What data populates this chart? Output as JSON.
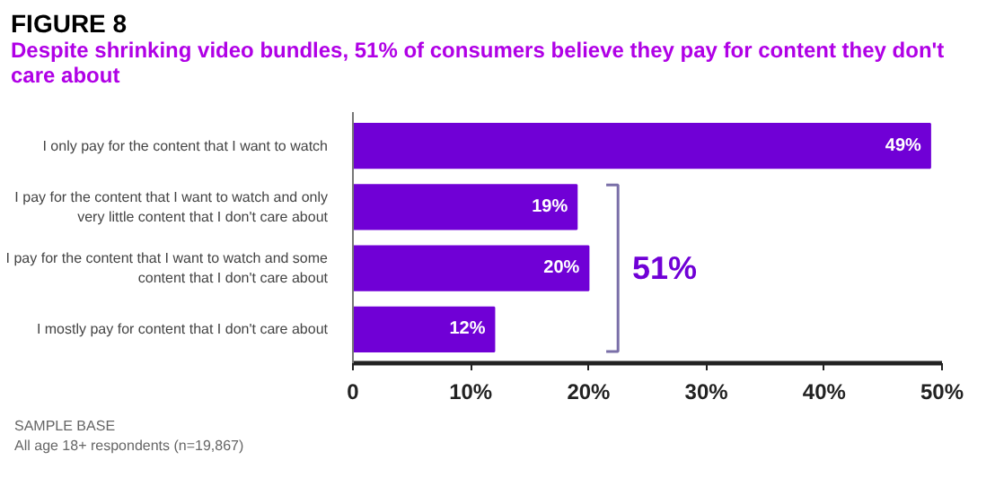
{
  "chart_data": {
    "type": "bar",
    "orientation": "horizontal",
    "title": "FIGURE 8",
    "subtitle": "Despite shrinking video bundles, 51% of consumers believe they pay for content they don't care about",
    "categories": [
      "I only pay for the content that I want to watch",
      "I pay for the content that I want to watch and only very little content that I don't care about",
      "I pay for the content that I want to watch and some content that I don't care about",
      "I mostly pay for content that I don't care about"
    ],
    "values": [
      49,
      19,
      20,
      12
    ],
    "color": "#7000d6",
    "value_labels": [
      "49%",
      "19%",
      "20%",
      "12%"
    ],
    "xlim": [
      0,
      50
    ],
    "xticks": [
      0,
      {
        "value": 10,
        "label": "10%"
      },
      {
        "value": 20,
        "label": "20%"
      },
      {
        "value": 30,
        "label": "30%"
      },
      {
        "value": 40,
        "label": "40%"
      },
      {
        "value": 50,
        "label": "50%"
      }
    ],
    "grid": false,
    "annotations": [
      "51%",
      "SAMPLE BASE",
      "All age 18+ respondents (n=19,867)"
    ]
  }
}
